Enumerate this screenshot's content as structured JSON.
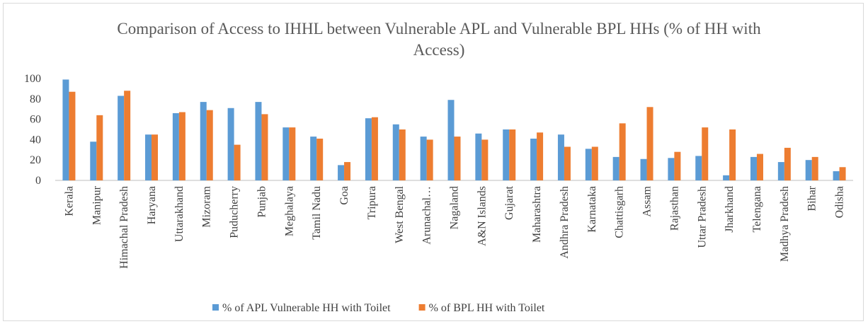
{
  "chart_data": {
    "type": "bar",
    "title": "Comparison of Access to IHHL between Vulnerable APL and Vulnerable BPL HHs (% of HH with Access)",
    "categories": [
      "Kerala",
      "Manipur",
      "Himachal Pradesh",
      "Haryana",
      "Uttarakhand",
      "Mizoram",
      "Puducherry",
      "Punjab",
      "Meghalaya",
      "Tamil Nadu",
      "Goa",
      "Tripura",
      "West Bengal",
      "Arunachal…",
      "Nagaland",
      "A&N Islands",
      "Gujarat",
      "Maharashtra",
      "Andhra Pradesh",
      "Karnataka",
      "Chattisgarh",
      "Assam",
      "Rajasthan",
      "Uttar Pradesh",
      "Jharkhand",
      "Telengana",
      "Madhya Pradesh",
      "Bihar",
      "Odisha"
    ],
    "series": [
      {
        "name": "% of APL Vulnerable HH with Toilet",
        "color": "#5b9bd5",
        "values": [
          99,
          38,
          83,
          45,
          66,
          77,
          71,
          77,
          52,
          43,
          15,
          61,
          55,
          43,
          79,
          46,
          50,
          41,
          45,
          31,
          23,
          21,
          22,
          24,
          5,
          23,
          18,
          20,
          9
        ]
      },
      {
        "name": "% of BPL HH with Toilet",
        "color": "#ed7d31",
        "values": [
          87,
          64,
          88,
          45,
          67,
          69,
          35,
          65,
          52,
          41,
          18,
          62,
          50,
          40,
          43,
          40,
          50,
          47,
          33,
          33,
          56,
          72,
          28,
          52,
          50,
          26,
          32,
          23,
          13
        ]
      }
    ],
    "ylim": [
      0,
      100
    ],
    "yticks": [
      0,
      20,
      40,
      60,
      80,
      100
    ],
    "grid": false,
    "legend": "bottom"
  }
}
